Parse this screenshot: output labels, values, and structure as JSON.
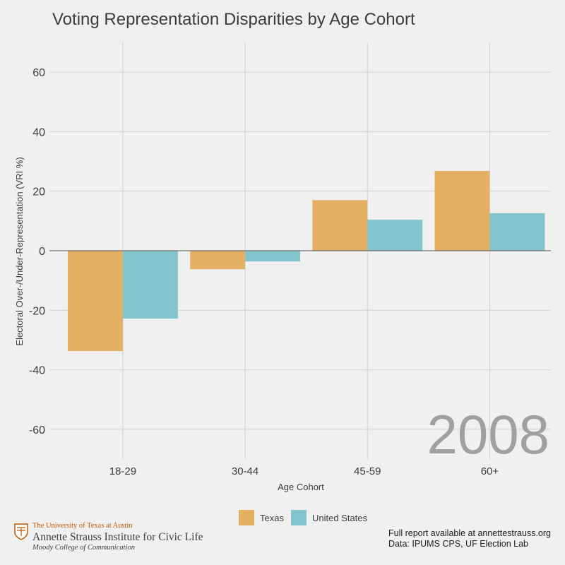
{
  "title": "Voting Representation Disparities by Age Cohort",
  "year_label": "2008",
  "colors": {
    "texas": "#e3b064",
    "united_states": "#82c3cc",
    "background": "#f0f0f0",
    "grid": "#d0d0d0",
    "year": "#a0a0a0"
  },
  "legend": [
    {
      "name": "Texas",
      "color": "#e3b064"
    },
    {
      "name": "United States",
      "color": "#82c3cc"
    }
  ],
  "logo": {
    "line1": "The University of Texas at Austin",
    "line2": "Annette Strauss Institute for Civic Life",
    "line3": "Moody College of Communication"
  },
  "footer": {
    "line1": "Full report available at annettestrauss.org",
    "line2": "Data: IPUMS CPS, UF Election Lab"
  },
  "chart_data": {
    "type": "bar",
    "categories": [
      "18-29",
      "30-44",
      "45-59",
      "60+"
    ],
    "series": [
      {
        "name": "Texas",
        "values": [
          -33.7,
          -6.2,
          17.0,
          26.8
        ]
      },
      {
        "name": "United States",
        "values": [
          -22.8,
          -3.6,
          10.4,
          12.6
        ]
      }
    ],
    "xlabel": "Age Cohort",
    "ylabel": "Electoral Over-/Under-Representation (VRI %)",
    "ylim": [
      -70,
      70
    ],
    "yticks": [
      -60,
      -40,
      -20,
      0,
      20,
      40,
      60
    ],
    "grid": true,
    "legend_position": "bottom"
  }
}
